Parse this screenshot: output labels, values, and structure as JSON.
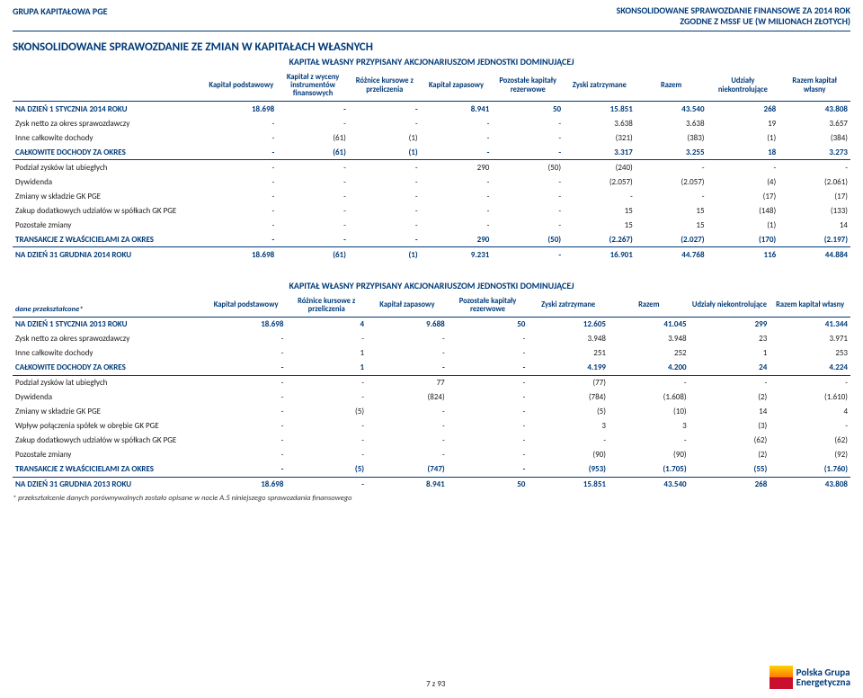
{
  "header": {
    "left": "GRUPA KAPITAŁOWA PGE",
    "right1": "SKONSOLIDOWANE SPRAWOZDANIE FINANSOWE ZA 2014 ROK",
    "right2": "ZGODNE Z MSSF UE (W MILIONACH ZŁOTYCH)"
  },
  "section_title": "SKONSOLIDOWANE SPRAWOZDANIE ZE ZMIAN W KAPITAŁACH WŁASNYCH",
  "caption": "KAPITAŁ WŁASNY PRZYPISANY AKCJONARIUSZOM JEDNOSTKI DOMINUJĄCEJ",
  "t1": {
    "headers": [
      "",
      "Kapitał podstawowy",
      "Kapitał z wyceny instrumentów finansowych",
      "Różnice kursowe z przeliczenia",
      "Kapitał zapasowy",
      "Pozostałe kapitały rezerwowe",
      "Zyski zatrzymane",
      "Razem",
      "Udziały niekontrolujące",
      "Razem kapitał własny"
    ],
    "rows": [
      {
        "style": "blue top",
        "c": [
          "NA DZIEŃ 1 STYCZNIA 2014 ROKU",
          "18.698",
          "-",
          "-",
          "8.941",
          "50",
          "15.851",
          "43.540",
          "268",
          "43.808"
        ]
      },
      {
        "c": [
          "Zysk netto za okres sprawozdawczy",
          "-",
          "-",
          "-",
          "-",
          "-",
          "3.638",
          "3.638",
          "19",
          "3.657"
        ]
      },
      {
        "c": [
          "Inne całkowite dochody",
          "-",
          "(61)",
          "(1)",
          "-",
          "-",
          "(321)",
          "(383)",
          "(1)",
          "(384)"
        ]
      },
      {
        "style": "blue",
        "c": [
          "CAŁKOWITE DOCHODY ZA OKRES",
          "-",
          "(61)",
          "(1)",
          "-",
          "-",
          "3.317",
          "3.255",
          "18",
          "3.273"
        ]
      },
      {
        "style": "top",
        "c": [
          "Podział zysków lat ubiegłych",
          "-",
          "-",
          "-",
          "290",
          "(50)",
          "(240)",
          "-",
          "-",
          "-"
        ]
      },
      {
        "c": [
          "Dywidenda",
          "-",
          "-",
          "-",
          "-",
          "-",
          "(2.057)",
          "(2.057)",
          "(4)",
          "(2.061)"
        ]
      },
      {
        "c": [
          "Zmiany w składzie GK PGE",
          "-",
          "-",
          "-",
          "-",
          "-",
          "-",
          "-",
          "(17)",
          "(17)"
        ]
      },
      {
        "c": [
          "Zakup dodatkowych udziałów w spółkach GK PGE",
          "-",
          "-",
          "-",
          "-",
          "-",
          "15",
          "15",
          "(148)",
          "(133)"
        ]
      },
      {
        "c": [
          "Pozostałe zmiany",
          "-",
          "-",
          "-",
          "-",
          "-",
          "15",
          "15",
          "(1)",
          "14"
        ]
      },
      {
        "style": "blue",
        "c": [
          "TRANSAKCJE Z WŁAŚCICIELAMI ZA OKRES",
          "-",
          "-",
          "-",
          "290",
          "(50)",
          "(2.267)",
          "(2.027)",
          "(170)",
          "(2.197)"
        ]
      },
      {
        "style": "blue top",
        "c": [
          "NA DZIEŃ 31 GRUDNIA 2014 ROKU",
          "18.698",
          "(61)",
          "(1)",
          "9.231",
          "-",
          "16.901",
          "44.768",
          "116",
          "44.884"
        ]
      }
    ]
  },
  "t2": {
    "firstcol": "dane przekształcone*",
    "headers": [
      "",
      "Kapitał podstawowy",
      "Różnice kursowe z przeliczenia",
      "Kapitał zapasowy",
      "Pozostałe kapitały rezerwowe",
      "Zyski zatrzymane",
      "Razem",
      "Udziały niekontrolujące",
      "Razem kapitał własny"
    ],
    "rows": [
      {
        "style": "blue top",
        "c": [
          "NA DZIEŃ 1 STYCZNIA 2013 ROKU",
          "18.698",
          "4",
          "9.688",
          "50",
          "12.605",
          "41.045",
          "299",
          "41.344"
        ]
      },
      {
        "c": [
          "Zysk netto za okres sprawozdawczy",
          "-",
          "-",
          "-",
          "-",
          "3.948",
          "3.948",
          "23",
          "3.971"
        ]
      },
      {
        "c": [
          "Inne całkowite dochody",
          "-",
          "1",
          "-",
          "-",
          "251",
          "252",
          "1",
          "253"
        ]
      },
      {
        "style": "blue",
        "c": [
          "CAŁKOWITE DOCHODY ZA OKRES",
          "-",
          "1",
          "-",
          "-",
          "4.199",
          "4.200",
          "24",
          "4.224"
        ]
      },
      {
        "style": "top",
        "c": [
          "Podział zysków lat ubiegłych",
          "-",
          "-",
          "77",
          "-",
          "(77)",
          "-",
          "-",
          "-"
        ]
      },
      {
        "c": [
          "Dywidenda",
          "-",
          "-",
          "(824)",
          "-",
          "(784)",
          "(1.608)",
          "(2)",
          "(1.610)"
        ]
      },
      {
        "c": [
          "Zmiany w składzie GK PGE",
          "-",
          "(5)",
          "-",
          "-",
          "(5)",
          "(10)",
          "14",
          "4"
        ]
      },
      {
        "c": [
          "Wpływ połączenia spółek w obrębie GK PGE",
          "-",
          "-",
          "-",
          "-",
          "3",
          "3",
          "(3)",
          "-"
        ]
      },
      {
        "c": [
          "Zakup dodatkowych udziałów w spółkach GK PGE",
          "-",
          "-",
          "-",
          "-",
          "-",
          "-",
          "(62)",
          "(62)"
        ]
      },
      {
        "c": [
          "Pozostałe zmiany",
          "-",
          "-",
          "-",
          "-",
          "(90)",
          "(90)",
          "(2)",
          "(92)"
        ]
      },
      {
        "style": "blue",
        "c": [
          "TRANSAKCJE Z WŁAŚCICIELAMI ZA OKRES",
          "-",
          "(5)",
          "(747)",
          "-",
          "(953)",
          "(1.705)",
          "(55)",
          "(1.760)"
        ]
      },
      {
        "style": "blue top",
        "c": [
          "NA DZIEŃ 31 GRUDNIA 2013 ROKU",
          "18.698",
          "-",
          "8.941",
          "50",
          "15.851",
          "43.540",
          "268",
          "43.808"
        ]
      }
    ]
  },
  "footnote": "* przekształcenie danych porównywalnych zostało opisane w nocie A.5 niniejszego sprawozdania finansowego",
  "footer": {
    "page": "7 z 93",
    "logo1": "Polska Grupa",
    "logo2": "Energetyczna"
  }
}
